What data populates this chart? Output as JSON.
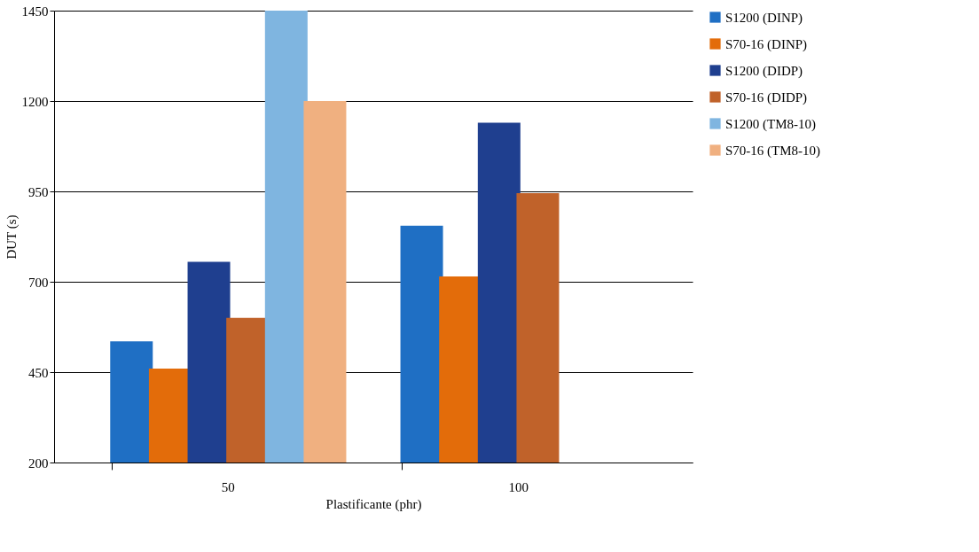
{
  "chart_data": {
    "type": "bar",
    "xlabel": "Plastificante (phr)",
    "ylabel": "DUT (s)",
    "categories": [
      "50",
      "100"
    ],
    "series": [
      {
        "name": "S1200 (DINP)",
        "color": "#1f6fc4",
        "values": [
          535,
          855
        ]
      },
      {
        "name": "S70-16 (DINP)",
        "color": "#e36c0a",
        "values": [
          460,
          715
        ]
      },
      {
        "name": "S1200 (DIDP)",
        "color": "#1f3f8f",
        "values": [
          755,
          1140
        ]
      },
      {
        "name": "S70-16 (DIDP)",
        "color": "#c0622a",
        "values": [
          600,
          945
        ]
      },
      {
        "name": "S1200 (TM8-10)",
        "color": "#7fb5e0",
        "values": [
          1450,
          null
        ]
      },
      {
        "name": "S70-16 (TM8-10)",
        "color": "#f0b080",
        "values": [
          1200,
          null
        ]
      }
    ],
    "ylim": [
      200,
      1450
    ],
    "yticks": [
      200,
      450,
      700,
      950,
      1200,
      1450
    ],
    "grid": "y",
    "legend": "right"
  }
}
